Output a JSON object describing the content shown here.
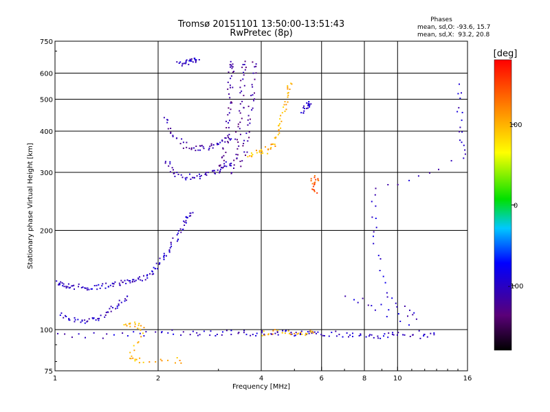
{
  "chart_data": {
    "type": "scatter",
    "title": "Tromsø 20151101 13:50:00-13:51:43",
    "subtitle": "RwPretec (8p)",
    "xlabel": "Frequency [MHz]",
    "ylabel": "Stationary phase Virtual Height [km]",
    "xscale": "log",
    "yscale": "log",
    "xlim": [
      1,
      16
    ],
    "ylim": [
      75,
      750
    ],
    "grid": true,
    "x_ticks": [
      1,
      2,
      4,
      6,
      8,
      10,
      16
    ],
    "x_tick_labels": [
      "1",
      "2",
      "4",
      "6",
      "8",
      "10",
      "16"
    ],
    "x_grid": [
      2,
      4,
      6,
      8,
      10
    ],
    "y_ticks": [
      75,
      100,
      200,
      300,
      400,
      500,
      600,
      750
    ],
    "y_tick_labels": [
      "75",
      "100",
      "200",
      "300",
      "400",
      "500",
      "600",
      "750"
    ],
    "y_grid": [
      100,
      200,
      300,
      400,
      500,
      600
    ],
    "phase_stats": {
      "header": "Phases",
      "o_line": "mean, sd,O: -93.6, 15.7",
      "x_line": "mean, sd,X:  93.2, 20.8"
    },
    "colorbar": {
      "label": "[deg]",
      "range": [
        -180,
        180
      ],
      "ticks": [
        100,
        0,
        -100
      ],
      "tick_labels": [
        "100",
        "0",
        "-100"
      ],
      "colormap": "rainbow (black-purple-blue-cyan-green-yellow-orange-red)"
    },
    "traces": [
      {
        "description_phase": -100,
        "points": [
          [
            1.0,
            140
          ],
          [
            1.05,
            138
          ],
          [
            1.1,
            136
          ],
          [
            1.2,
            135
          ],
          [
            1.3,
            135
          ],
          [
            1.4,
            136
          ],
          [
            1.5,
            138
          ],
          [
            1.6,
            140
          ],
          [
            1.7,
            142
          ],
          [
            1.8,
            145
          ],
          [
            1.9,
            150
          ],
          [
            2.0,
            158
          ],
          [
            2.1,
            170
          ],
          [
            2.2,
            185
          ],
          [
            2.3,
            200
          ],
          [
            2.4,
            215
          ],
          [
            2.5,
            225
          ]
        ]
      },
      {
        "description_phase": -100,
        "points": [
          [
            1.0,
            112
          ],
          [
            1.1,
            108
          ],
          [
            1.2,
            107
          ],
          [
            1.3,
            108
          ],
          [
            1.4,
            112
          ],
          [
            1.5,
            118
          ],
          [
            1.6,
            125
          ]
        ]
      },
      {
        "description_phase": -110,
        "points": [
          [
            2.1,
            330
          ],
          [
            2.2,
            300
          ],
          [
            2.4,
            292
          ],
          [
            2.6,
            293
          ],
          [
            2.8,
            298
          ],
          [
            3.0,
            308
          ],
          [
            3.2,
            320
          ]
        ]
      },
      {
        "description_phase": -110,
        "points": [
          [
            2.1,
            440
          ],
          [
            2.2,
            390
          ],
          [
            2.4,
            362
          ],
          [
            2.6,
            355
          ],
          [
            2.8,
            358
          ],
          [
            3.0,
            368
          ],
          [
            3.2,
            385
          ]
        ]
      },
      {
        "description_phase": -120,
        "points": [
          [
            3.0,
            300
          ],
          [
            3.1,
            330
          ],
          [
            3.15,
            380
          ],
          [
            3.2,
            450
          ],
          [
            3.22,
            520
          ],
          [
            3.25,
            600
          ],
          [
            3.28,
            650
          ]
        ]
      },
      {
        "description_phase": -120,
        "points": [
          [
            3.25,
            300
          ],
          [
            3.35,
            340
          ],
          [
            3.42,
            400
          ],
          [
            3.48,
            470
          ],
          [
            3.52,
            560
          ],
          [
            3.55,
            650
          ]
        ]
      },
      {
        "description_phase": -120,
        "points": [
          [
            3.5,
            320
          ],
          [
            3.6,
            370
          ],
          [
            3.7,
            440
          ],
          [
            3.75,
            520
          ],
          [
            3.8,
            640
          ]
        ]
      },
      {
        "description_phase": 100,
        "points": [
          [
            3.7,
            340
          ],
          [
            3.9,
            345
          ],
          [
            4.1,
            350
          ],
          [
            4.3,
            365
          ],
          [
            4.5,
            400
          ],
          [
            4.6,
            450
          ],
          [
            4.7,
            500
          ],
          [
            4.8,
            560
          ]
        ]
      },
      {
        "description_phase": -100,
        "points": [
          [
            5.3,
            460
          ],
          [
            5.4,
            480
          ],
          [
            5.5,
            490
          ]
        ]
      },
      {
        "description_phase": -100,
        "points": [
          [
            2.3,
            640
          ],
          [
            2.4,
            650
          ],
          [
            2.5,
            655
          ],
          [
            2.6,
            660
          ]
        ]
      },
      {
        "description_phase": -100,
        "points": [
          [
            1.0,
            97
          ],
          [
            1.5,
            96
          ],
          [
            2.0,
            99
          ],
          [
            2.5,
            98
          ],
          [
            3.0,
            98
          ],
          [
            3.5,
            98
          ],
          [
            4.0,
            98
          ],
          [
            4.5,
            98
          ],
          [
            5.0,
            98
          ],
          [
            5.5,
            98
          ],
          [
            6.0,
            98
          ],
          [
            7.0,
            97
          ],
          [
            8.0,
            96
          ],
          [
            9.0,
            96
          ],
          [
            10.0,
            97
          ],
          [
            12.0,
            96
          ]
        ]
      },
      {
        "description_phase": 100,
        "points": [
          [
            4.0,
            98
          ],
          [
            4.5,
            99
          ],
          [
            5.0,
            98
          ],
          [
            5.6,
            98
          ]
        ]
      },
      {
        "description_phase": 100,
        "points": [
          [
            1.6,
            103
          ],
          [
            1.7,
            104
          ],
          [
            1.8,
            102
          ],
          [
            1.65,
            82
          ],
          [
            1.75,
            81
          ],
          [
            2.3,
            81
          ]
        ]
      },
      {
        "description_phase": 140,
        "points": [
          [
            5.6,
            280
          ],
          [
            5.8,
            290
          ],
          [
            5.7,
            265
          ]
        ]
      },
      {
        "description_phase": -100,
        "points": [
          [
            15.0,
            550
          ],
          [
            15.2,
            420
          ],
          [
            15.5,
            330
          ],
          [
            8.5,
            265
          ],
          [
            8.5,
            190
          ],
          [
            9.3,
            125
          ],
          [
            11.5,
            110
          ],
          [
            7.0,
            128
          ],
          [
            12.5,
            97
          ]
        ]
      }
    ]
  }
}
